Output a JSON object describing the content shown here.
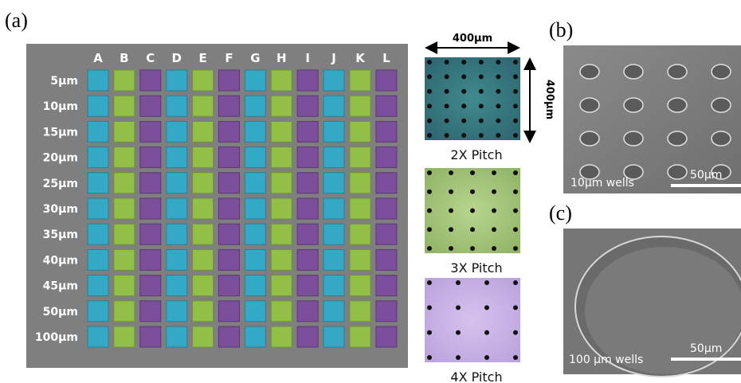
{
  "panel_labels": [
    "(a)",
    "(b)",
    "(c)"
  ],
  "grid": {
    "columns": [
      "A",
      "B",
      "C",
      "D",
      "E",
      "F",
      "G",
      "H",
      "I",
      "J",
      "K",
      "L"
    ],
    "rows": [
      "5µm",
      "10µm",
      "15µm",
      "20µm",
      "25µm",
      "30µm",
      "35µm",
      "40µm",
      "45µm",
      "50µm",
      "100µm"
    ]
  },
  "dimensions": {
    "width": "400µm",
    "height": "400µm"
  },
  "pitch_panels": [
    {
      "label": "2X Pitch"
    },
    {
      "label": "3X Pitch"
    },
    {
      "label": "4X Pitch"
    }
  ],
  "sem_b": {
    "caption": "10µm wells",
    "scale": "50µm"
  },
  "sem_c": {
    "caption": "100 µm wells",
    "scale": "50µm"
  }
}
